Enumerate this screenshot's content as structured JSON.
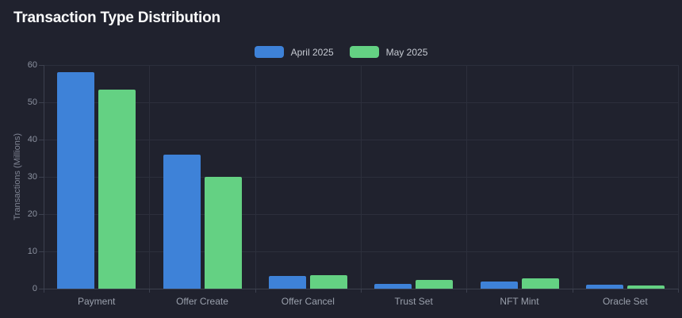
{
  "page": {
    "title": "Transaction Type Distribution"
  },
  "colors": {
    "background": "#20222E",
    "grid": "#2C2F3C",
    "axis": "#3C404E",
    "april_blue": "#3E82D8",
    "may_green": "#64D183"
  },
  "chart_data": {
    "type": "bar",
    "title": "Transaction Type Distribution",
    "categories": [
      "Payment",
      "Offer Create",
      "Offer Cancel",
      "Trust Set",
      "NFT Mint",
      "Oracle Set"
    ],
    "series": [
      {
        "name": "April 2025",
        "color": "#3E82D8",
        "values": [
          58,
          36,
          3.5,
          1.3,
          1.9,
          1.0
        ]
      },
      {
        "name": "May 2025",
        "color": "#64D183",
        "values": [
          53.5,
          30,
          3.7,
          2.3,
          2.7,
          0.9
        ]
      }
    ],
    "xlabel": "",
    "ylabel": "Transactions (Millions)",
    "ylim": [
      0,
      60
    ],
    "ytick_step": 10,
    "yticks": [
      0,
      10,
      20,
      30,
      40,
      50,
      60
    ],
    "grid": true,
    "legend_position": "top-center"
  }
}
